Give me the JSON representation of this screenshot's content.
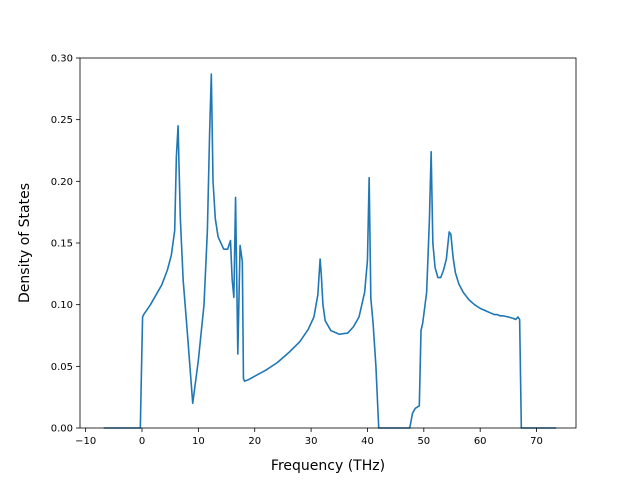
{
  "chart_data": {
    "type": "line",
    "title": "",
    "xlabel": "Frequency (THz)",
    "ylabel": "Density of States",
    "xlim": [
      -11,
      77
    ],
    "ylim": [
      0,
      0.3
    ],
    "xticks": [
      -10,
      0,
      10,
      20,
      30,
      40,
      50,
      60,
      70
    ],
    "xtick_labels": [
      "−10",
      "0",
      "10",
      "20",
      "30",
      "40",
      "50",
      "60",
      "70"
    ],
    "yticks": [
      0.0,
      0.05,
      0.1,
      0.15,
      0.2,
      0.25,
      0.3
    ],
    "ytick_labels": [
      "0.00",
      "0.05",
      "0.10",
      "0.15",
      "0.20",
      "0.25",
      "0.30"
    ],
    "grid": false,
    "series": [
      {
        "color": "#1f77b4",
        "x": [
          -6.8,
          -0.3,
          0.1,
          0.3,
          1.5,
          2.5,
          3.5,
          4.5,
          5.2,
          5.8,
          6.1,
          6.4,
          6.8,
          7.3,
          8.0,
          9.0,
          10.0,
          11.0,
          11.6,
          12.0,
          12.3,
          12.6,
          13.0,
          13.5,
          14.5,
          15.2,
          15.7,
          16.0,
          16.3,
          16.6,
          17.0,
          17.4,
          17.8,
          18.0,
          18.2,
          18.8,
          20.0,
          22.0,
          24.0,
          26.0,
          28.0,
          29.5,
          30.5,
          31.2,
          31.6,
          31.8,
          32.1,
          32.5,
          33.5,
          35.0,
          36.5,
          37.5,
          38.5,
          39.5,
          40.0,
          40.3,
          40.6,
          41.0,
          41.5,
          42.0,
          47.5,
          48.0,
          48.5,
          49.2,
          49.5,
          49.8,
          50.5,
          51.0,
          51.3,
          51.6,
          52.0,
          52.5,
          53.0,
          53.5,
          54.0,
          54.5,
          54.8,
          55.2,
          55.6,
          56.2,
          57.0,
          58.0,
          59.0,
          60.0,
          61.0,
          62.0,
          62.5,
          63.0,
          63.5,
          64.0,
          65.0,
          65.8,
          66.3,
          66.7,
          67.0,
          67.3,
          67.6,
          73.5
        ],
        "y": [
          0.0,
          0.0,
          0.09,
          0.092,
          0.1,
          0.108,
          0.116,
          0.128,
          0.14,
          0.16,
          0.22,
          0.245,
          0.17,
          0.12,
          0.08,
          0.02,
          0.055,
          0.1,
          0.16,
          0.24,
          0.287,
          0.2,
          0.17,
          0.155,
          0.145,
          0.145,
          0.152,
          0.12,
          0.106,
          0.187,
          0.06,
          0.148,
          0.135,
          0.04,
          0.038,
          0.039,
          0.042,
          0.047,
          0.053,
          0.061,
          0.07,
          0.08,
          0.09,
          0.108,
          0.137,
          0.125,
          0.1,
          0.087,
          0.079,
          0.076,
          0.077,
          0.082,
          0.09,
          0.11,
          0.136,
          0.203,
          0.105,
          0.085,
          0.05,
          0.0,
          0.0,
          0.012,
          0.016,
          0.018,
          0.079,
          0.085,
          0.11,
          0.17,
          0.224,
          0.15,
          0.13,
          0.122,
          0.122,
          0.128,
          0.137,
          0.159,
          0.157,
          0.138,
          0.126,
          0.117,
          0.11,
          0.104,
          0.1,
          0.097,
          0.095,
          0.093,
          0.092,
          0.092,
          0.091,
          0.091,
          0.09,
          0.089,
          0.088,
          0.09,
          0.088,
          0.0,
          0.0,
          0.0
        ]
      }
    ]
  }
}
